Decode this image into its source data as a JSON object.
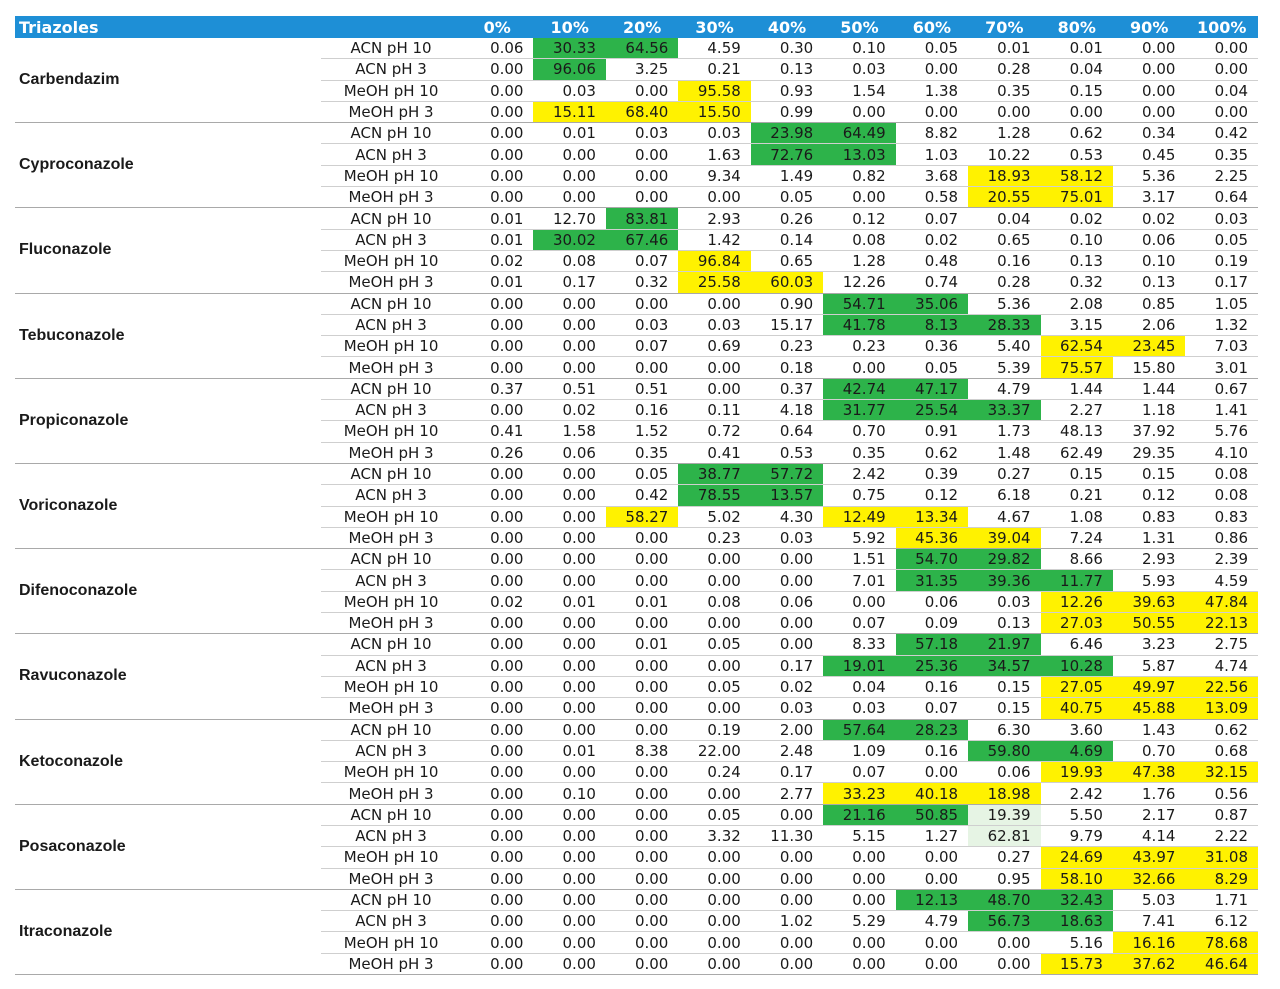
{
  "header": {
    "title": "Triazoles",
    "columns": [
      "0%",
      "10%",
      "20%",
      "30%",
      "40%",
      "50%",
      "60%",
      "70%",
      "80%",
      "90%",
      "100%"
    ]
  },
  "colors": {
    "green": "#2db34a",
    "yellow": "#fff200",
    "light_green": "#e6f4e4",
    "header_blue": "#1e8fd6"
  },
  "compounds": [
    {
      "name": "Carbendazim",
      "rows": [
        {
          "label": "ACN pH 10",
          "values": [
            "0.06",
            "30.33",
            "64.56",
            "4.59",
            "0.30",
            "0.10",
            "0.05",
            "0.01",
            "0.01",
            "0.00",
            "0.00"
          ],
          "hl": "-gg--------"
        },
        {
          "label": "ACN pH 3",
          "values": [
            "0.00",
            "96.06",
            "3.25",
            "0.21",
            "0.13",
            "0.03",
            "0.00",
            "0.28",
            "0.04",
            "0.00",
            "0.00"
          ],
          "hl": "-g---------"
        },
        {
          "label": "MeOH pH 10",
          "values": [
            "0.00",
            "0.03",
            "0.00",
            "95.58",
            "0.93",
            "1.54",
            "1.38",
            "0.35",
            "0.15",
            "0.00",
            "0.04"
          ],
          "hl": "---y-------"
        },
        {
          "label": "MeOH pH 3",
          "values": [
            "0.00",
            "15.11",
            "68.40",
            "15.50",
            "0.99",
            "0.00",
            "0.00",
            "0.00",
            "0.00",
            "0.00",
            "0.00"
          ],
          "hl": "-yyy-------"
        }
      ]
    },
    {
      "name": "Cyproconazole",
      "rows": [
        {
          "label": "ACN pH 10",
          "values": [
            "0.00",
            "0.01",
            "0.03",
            "0.03",
            "23.98",
            "64.49",
            "8.82",
            "1.28",
            "0.62",
            "0.34",
            "0.42"
          ],
          "hl": "----gg-----"
        },
        {
          "label": "ACN pH 3",
          "values": [
            "0.00",
            "0.00",
            "0.00",
            "1.63",
            "72.76",
            "13.03",
            "1.03",
            "10.22",
            "0.53",
            "0.45",
            "0.35"
          ],
          "hl": "----gg-----"
        },
        {
          "label": "MeOH pH 10",
          "values": [
            "0.00",
            "0.00",
            "0.00",
            "9.34",
            "1.49",
            "0.82",
            "3.68",
            "18.93",
            "58.12",
            "5.36",
            "2.25"
          ],
          "hl": "-------yy--"
        },
        {
          "label": "MeOH pH 3",
          "values": [
            "0.00",
            "0.00",
            "0.00",
            "0.00",
            "0.05",
            "0.00",
            "0.58",
            "20.55",
            "75.01",
            "3.17",
            "0.64"
          ],
          "hl": "-------yy--"
        }
      ]
    },
    {
      "name": "Fluconazole",
      "rows": [
        {
          "label": "ACN pH 10",
          "values": [
            "0.01",
            "12.70",
            "83.81",
            "2.93",
            "0.26",
            "0.12",
            "0.07",
            "0.04",
            "0.02",
            "0.02",
            "0.03"
          ],
          "hl": "--g--------"
        },
        {
          "label": "ACN pH 3",
          "values": [
            "0.01",
            "30.02",
            "67.46",
            "1.42",
            "0.14",
            "0.08",
            "0.02",
            "0.65",
            "0.10",
            "0.06",
            "0.05"
          ],
          "hl": "-gg--------"
        },
        {
          "label": "MeOH pH 10",
          "values": [
            "0.02",
            "0.08",
            "0.07",
            "96.84",
            "0.65",
            "1.28",
            "0.48",
            "0.16",
            "0.13",
            "0.10",
            "0.19"
          ],
          "hl": "---y-------"
        },
        {
          "label": "MeOH pH 3",
          "values": [
            "0.01",
            "0.17",
            "0.32",
            "25.58",
            "60.03",
            "12.26",
            "0.74",
            "0.28",
            "0.32",
            "0.13",
            "0.17"
          ],
          "hl": "---yy------"
        }
      ]
    },
    {
      "name": "Tebuconazole",
      "rows": [
        {
          "label": "ACN pH 10",
          "values": [
            "0.00",
            "0.00",
            "0.00",
            "0.00",
            "0.90",
            "54.71",
            "35.06",
            "5.36",
            "2.08",
            "0.85",
            "1.05"
          ],
          "hl": "-----gg----"
        },
        {
          "label": "ACN pH 3",
          "values": [
            "0.00",
            "0.00",
            "0.03",
            "0.03",
            "15.17",
            "41.78",
            "8.13",
            "28.33",
            "3.15",
            "2.06",
            "1.32"
          ],
          "hl": "-----ggg---"
        },
        {
          "label": "MeOH pH 10",
          "values": [
            "0.00",
            "0.00",
            "0.07",
            "0.69",
            "0.23",
            "0.23",
            "0.36",
            "5.40",
            "62.54",
            "23.45",
            "7.03"
          ],
          "hl": "--------yy-"
        },
        {
          "label": "MeOH pH 3",
          "values": [
            "0.00",
            "0.00",
            "0.00",
            "0.00",
            "0.18",
            "0.00",
            "0.05",
            "5.39",
            "75.57",
            "15.80",
            "3.01"
          ],
          "hl": "--------y--"
        }
      ]
    },
    {
      "name": "Propiconazole",
      "rows": [
        {
          "label": "ACN pH 10",
          "values": [
            "0.37",
            "0.51",
            "0.51",
            "0.00",
            "0.37",
            "42.74",
            "47.17",
            "4.79",
            "1.44",
            "1.44",
            "0.67"
          ],
          "hl": "-----gg----"
        },
        {
          "label": "ACN pH 3",
          "values": [
            "0.00",
            "0.02",
            "0.16",
            "0.11",
            "4.18",
            "31.77",
            "25.54",
            "33.37",
            "2.27",
            "1.18",
            "1.41"
          ],
          "hl": "-----ggg---"
        },
        {
          "label": "MeOH pH 10",
          "values": [
            "0.41",
            "1.58",
            "1.52",
            "0.72",
            "0.64",
            "0.70",
            "0.91",
            "1.73",
            "48.13",
            "37.92",
            "5.76"
          ],
          "hl": "-----------"
        },
        {
          "label": "MeOH pH 3",
          "values": [
            "0.26",
            "0.06",
            "0.35",
            "0.41",
            "0.53",
            "0.35",
            "0.62",
            "1.48",
            "62.49",
            "29.35",
            "4.10"
          ],
          "hl": "-----------"
        }
      ]
    },
    {
      "name": "Voriconazole",
      "rows": [
        {
          "label": "ACN pH 10",
          "values": [
            "0.00",
            "0.00",
            "0.05",
            "38.77",
            "57.72",
            "2.42",
            "0.39",
            "0.27",
            "0.15",
            "0.15",
            "0.08"
          ],
          "hl": "---gg------"
        },
        {
          "label": "ACN pH 3",
          "values": [
            "0.00",
            "0.00",
            "0.42",
            "78.55",
            "13.57",
            "0.75",
            "0.12",
            "6.18",
            "0.21",
            "0.12",
            "0.08"
          ],
          "hl": "---gg------"
        },
        {
          "label": "MeOH pH 10",
          "values": [
            "0.00",
            "0.00",
            "58.27",
            "5.02",
            "4.30",
            "12.49",
            "13.34",
            "4.67",
            "1.08",
            "0.83",
            "0.83"
          ],
          "hl": "--y--yy----"
        },
        {
          "label": "MeOH pH 3",
          "values": [
            "0.00",
            "0.00",
            "0.00",
            "0.23",
            "0.03",
            "5.92",
            "45.36",
            "39.04",
            "7.24",
            "1.31",
            "0.86"
          ],
          "hl": "------yy---"
        }
      ]
    },
    {
      "name": "Difenoconazole",
      "rows": [
        {
          "label": "ACN pH 10",
          "values": [
            "0.00",
            "0.00",
            "0.00",
            "0.00",
            "0.00",
            "1.51",
            "54.70",
            "29.82",
            "8.66",
            "2.93",
            "2.39"
          ],
          "hl": "------gg---"
        },
        {
          "label": "ACN pH 3",
          "values": [
            "0.00",
            "0.00",
            "0.00",
            "0.00",
            "0.00",
            "7.01",
            "31.35",
            "39.36",
            "11.77",
            "5.93",
            "4.59"
          ],
          "hl": "------ggg--"
        },
        {
          "label": "MeOH pH 10",
          "values": [
            "0.02",
            "0.01",
            "0.01",
            "0.08",
            "0.06",
            "0.00",
            "0.06",
            "0.03",
            "12.26",
            "39.63",
            "47.84"
          ],
          "hl": "--------yyy"
        },
        {
          "label": "MeOH pH 3",
          "values": [
            "0.00",
            "0.00",
            "0.00",
            "0.00",
            "0.00",
            "0.07",
            "0.09",
            "0.13",
            "27.03",
            "50.55",
            "22.13"
          ],
          "hl": "--------yyy"
        }
      ]
    },
    {
      "name": "Ravuconazole",
      "rows": [
        {
          "label": "ACN pH 10",
          "values": [
            "0.00",
            "0.00",
            "0.01",
            "0.05",
            "0.00",
            "8.33",
            "57.18",
            "21.97",
            "6.46",
            "3.23",
            "2.75"
          ],
          "hl": "------gg---"
        },
        {
          "label": "ACN pH 3",
          "values": [
            "0.00",
            "0.00",
            "0.00",
            "0.00",
            "0.17",
            "19.01",
            "25.36",
            "34.57",
            "10.28",
            "5.87",
            "4.74"
          ],
          "hl": "-----gggg--"
        },
        {
          "label": "MeOH pH 10",
          "values": [
            "0.00",
            "0.00",
            "0.00",
            "0.05",
            "0.02",
            "0.04",
            "0.16",
            "0.15",
            "27.05",
            "49.97",
            "22.56"
          ],
          "hl": "--------yyy"
        },
        {
          "label": "MeOH pH 3",
          "values": [
            "0.00",
            "0.00",
            "0.00",
            "0.00",
            "0.03",
            "0.03",
            "0.07",
            "0.15",
            "40.75",
            "45.88",
            "13.09"
          ],
          "hl": "--------yyy"
        }
      ]
    },
    {
      "name": "Ketoconazole",
      "rows": [
        {
          "label": "ACN pH 10",
          "values": [
            "0.00",
            "0.00",
            "0.00",
            "0.19",
            "2.00",
            "57.64",
            "28.23",
            "6.30",
            "3.60",
            "1.43",
            "0.62"
          ],
          "hl": "-----gg----"
        },
        {
          "label": "ACN pH 3",
          "values": [
            "0.00",
            "0.01",
            "8.38",
            "22.00",
            "2.48",
            "1.09",
            "0.16",
            "59.80",
            "4.69",
            "0.70",
            "0.68"
          ],
          "hl": "-------gg--"
        },
        {
          "label": "MeOH pH 10",
          "values": [
            "0.00",
            "0.00",
            "0.00",
            "0.24",
            "0.17",
            "0.07",
            "0.00",
            "0.06",
            "19.93",
            "47.38",
            "32.15"
          ],
          "hl": "--------yyy"
        },
        {
          "label": "MeOH pH 3",
          "values": [
            "0.00",
            "0.10",
            "0.00",
            "0.00",
            "2.77",
            "33.23",
            "40.18",
            "18.98",
            "2.42",
            "1.76",
            "0.56"
          ],
          "hl": "-----yyy---"
        }
      ]
    },
    {
      "name": "Posaconazole",
      "rows": [
        {
          "label": "ACN pH 10",
          "values": [
            "0.00",
            "0.00",
            "0.00",
            "0.05",
            "0.00",
            "21.16",
            "50.85",
            "19.39",
            "5.50",
            "2.17",
            "0.87"
          ],
          "hl": "-----ggl---"
        },
        {
          "label": "ACN pH 3",
          "values": [
            "0.00",
            "0.00",
            "0.00",
            "3.32",
            "11.30",
            "5.15",
            "1.27",
            "62.81",
            "9.79",
            "4.14",
            "2.22"
          ],
          "hl": "-------l---"
        },
        {
          "label": "MeOH pH 10",
          "values": [
            "0.00",
            "0.00",
            "0.00",
            "0.00",
            "0.00",
            "0.00",
            "0.00",
            "0.27",
            "24.69",
            "43.97",
            "31.08"
          ],
          "hl": "--------yyy"
        },
        {
          "label": "MeOH pH 3",
          "values": [
            "0.00",
            "0.00",
            "0.00",
            "0.00",
            "0.00",
            "0.00",
            "0.00",
            "0.95",
            "58.10",
            "32.66",
            "8.29"
          ],
          "hl": "--------yyy"
        }
      ]
    },
    {
      "name": "Itraconazole",
      "rows": [
        {
          "label": "ACN pH 10",
          "values": [
            "0.00",
            "0.00",
            "0.00",
            "0.00",
            "0.00",
            "0.00",
            "12.13",
            "48.70",
            "32.43",
            "5.03",
            "1.71"
          ],
          "hl": "------ggg--"
        },
        {
          "label": "ACN pH 3",
          "values": [
            "0.00",
            "0.00",
            "0.00",
            "0.00",
            "1.02",
            "5.29",
            "4.79",
            "56.73",
            "18.63",
            "7.41",
            "6.12"
          ],
          "hl": "-------gg--"
        },
        {
          "label": "MeOH pH 10",
          "values": [
            "0.00",
            "0.00",
            "0.00",
            "0.00",
            "0.00",
            "0.00",
            "0.00",
            "0.00",
            "5.16",
            "16.16",
            "78.68"
          ],
          "hl": "---------yy"
        },
        {
          "label": "MeOH pH 3",
          "values": [
            "0.00",
            "0.00",
            "0.00",
            "0.00",
            "0.00",
            "0.00",
            "0.00",
            "0.00",
            "15.73",
            "37.62",
            "46.64"
          ],
          "hl": "--------yyy"
        }
      ]
    }
  ]
}
